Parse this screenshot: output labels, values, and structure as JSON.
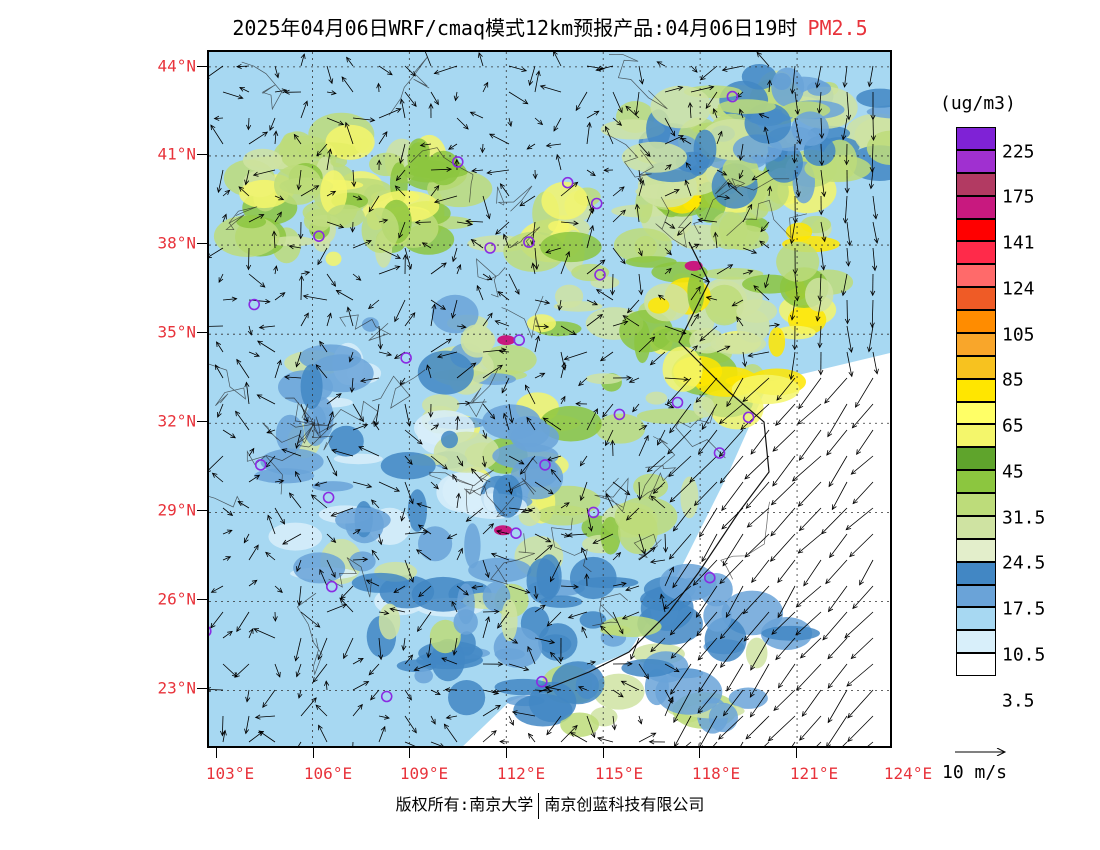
{
  "title": {
    "main": "2025年04月06日WRF/cmaq模式12km预报产品:04月06日19时",
    "species": "PM2.5"
  },
  "lat_labels": [
    "44°N",
    "41°N",
    "38°N",
    "35°N",
    "32°N",
    "29°N",
    "26°N",
    "23°N"
  ],
  "lon_labels": [
    "103°E",
    "106°E",
    "109°E",
    "112°E",
    "115°E",
    "118°E",
    "121°E",
    "124°E"
  ],
  "colorbar": {
    "unit": "(ug/m3)",
    "colors": [
      "#7f22d6",
      "#a030d0",
      "#b23a62",
      "#c8197f",
      "#ff0000",
      "#ff2a4a",
      "#ff6a6a",
      "#ef5b26",
      "#ff8c00",
      "#f9a62a",
      "#f7c21f",
      "#ffe600",
      "#ffff66",
      "#f4f66b",
      "#5fa42c",
      "#8cc63f",
      "#bddc7a",
      "#cfe3a2",
      "#e3eecb",
      "#4287c4",
      "#6aa3d8",
      "#a7d8f2",
      "#d8effa",
      "#ffffff"
    ],
    "labels": [
      "225",
      "175",
      "141",
      "124",
      "105",
      "85",
      "65",
      "45",
      "31.5",
      "24.5",
      "17.5",
      "10.5",
      "3.5"
    ]
  },
  "wind_key_label": "10 m/s",
  "footer": {
    "left": "版权所有:南京大学",
    "right": "南京创蓝科技有限公司"
  },
  "colors": {
    "axis_label": "#e8333b",
    "city_marker": "#8a2be2"
  },
  "map": {
    "lat_range": [
      21,
      44.5
    ],
    "lon_range": [
      102.8,
      124
    ],
    "cities": [
      {
        "lon": 119.0,
        "lat": 43.0
      },
      {
        "lon": 110.5,
        "lat": 40.8
      },
      {
        "lon": 113.9,
        "lat": 40.1
      },
      {
        "lon": 114.8,
        "lat": 39.4
      },
      {
        "lon": 106.2,
        "lat": 38.3
      },
      {
        "lon": 111.5,
        "lat": 37.9
      },
      {
        "lon": 112.7,
        "lat": 38.1
      },
      {
        "lon": 114.9,
        "lat": 37.0
      },
      {
        "lon": 104.2,
        "lat": 36.0
      },
      {
        "lon": 108.9,
        "lat": 34.2
      },
      {
        "lon": 112.4,
        "lat": 34.8
      },
      {
        "lon": 115.5,
        "lat": 32.3
      },
      {
        "lon": 117.3,
        "lat": 32.7
      },
      {
        "lon": 119.5,
        "lat": 32.2
      },
      {
        "lon": 118.6,
        "lat": 31.0
      },
      {
        "lon": 104.4,
        "lat": 30.6
      },
      {
        "lon": 113.2,
        "lat": 30.6
      },
      {
        "lon": 106.5,
        "lat": 29.5
      },
      {
        "lon": 112.3,
        "lat": 28.3
      },
      {
        "lon": 114.7,
        "lat": 29.0
      },
      {
        "lon": 118.3,
        "lat": 26.8
      },
      {
        "lon": 106.6,
        "lat": 26.5
      },
      {
        "lon": 102.7,
        "lat": 25.0
      },
      {
        "lon": 108.3,
        "lat": 22.8
      },
      {
        "lon": 113.1,
        "lat": 23.3
      }
    ]
  }
}
